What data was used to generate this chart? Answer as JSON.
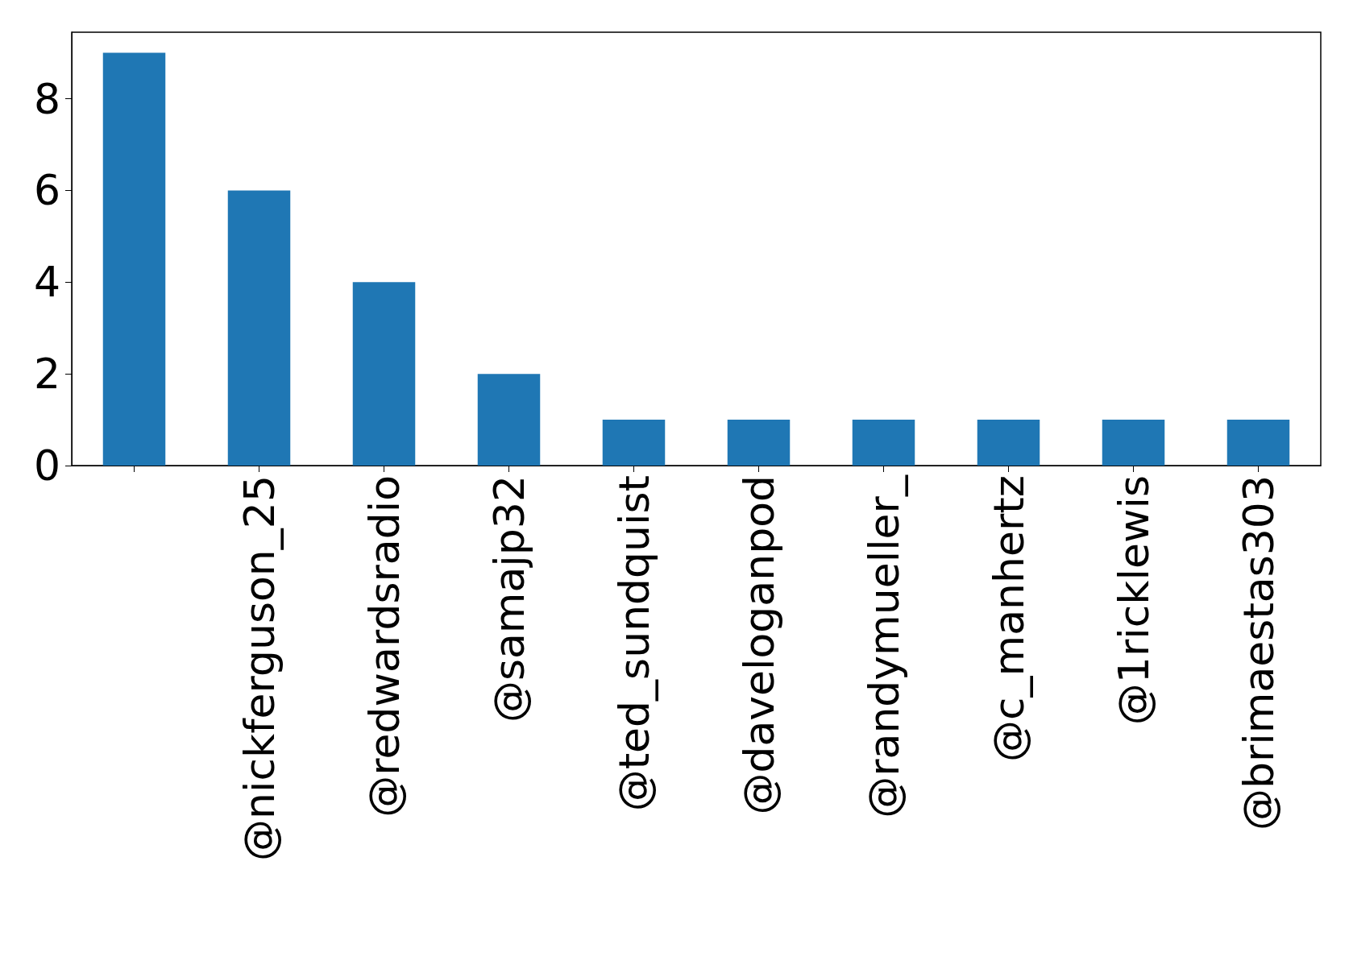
{
  "chart_data": {
    "type": "bar",
    "categories": [
      null,
      "@nickferguson_25",
      "@redwardsradio",
      "@samajp32",
      "@ted_sundquist",
      "@daveloganpod",
      "@randymueller_",
      "@c_manhertz",
      "@1ricklewis",
      "@brimaestas303"
    ],
    "values": [
      9,
      6,
      4,
      2,
      1,
      1,
      1,
      1,
      1,
      1
    ],
    "color": "#1f77b4",
    "ylim": [
      0,
      9.45
    ],
    "yticks": [
      0,
      2,
      4,
      6,
      8
    ]
  }
}
